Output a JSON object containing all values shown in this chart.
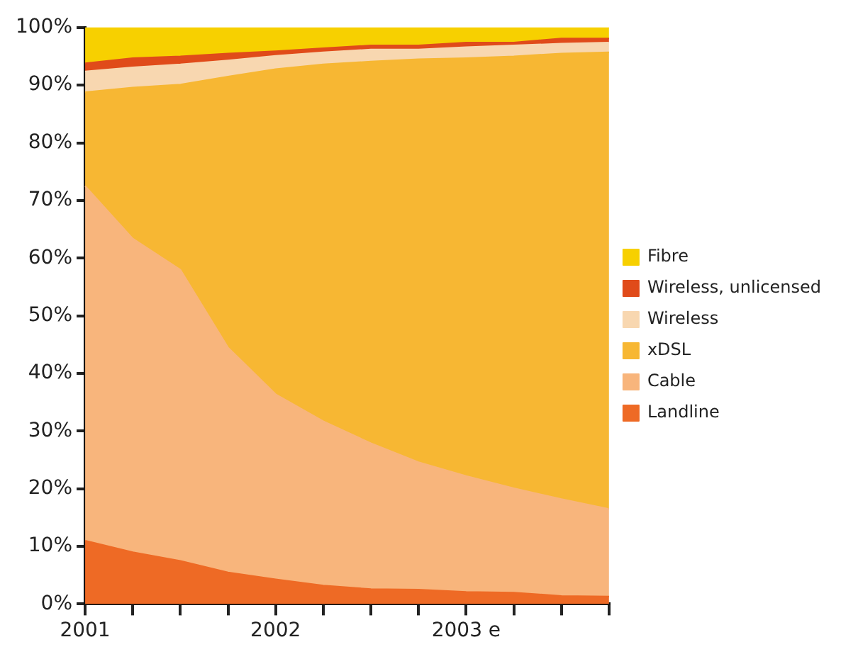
{
  "chart_data": {
    "type": "area",
    "stacked": true,
    "categories": [
      "2001",
      null,
      null,
      null,
      "2002",
      null,
      null,
      null,
      "2003 e",
      null,
      null,
      null
    ],
    "series": [
      {
        "name": "Landline",
        "color": "#ee6a25",
        "values": [
          11,
          9,
          7.5,
          5.5,
          4.3,
          3.2,
          2.6,
          2.5,
          2.1,
          2,
          1.4,
          1.3
        ]
      },
      {
        "name": "Cable",
        "color": "#f8b57c",
        "values": [
          61.5,
          54.4,
          50.5,
          39,
          32.1,
          28.5,
          25.3,
          22.1,
          20.1,
          18.1,
          16.8,
          15.2
        ]
      },
      {
        "name": "xDSL",
        "color": "#f7b733",
        "values": [
          16.3,
          26.2,
          32.1,
          47,
          56.4,
          61.9,
          66.2,
          69.9,
          72.5,
          74.9,
          77.3,
          79.2
        ]
      },
      {
        "name": "Wireless",
        "color": "#f8d7b0",
        "values": [
          3.6,
          3.5,
          3.5,
          2.8,
          2.3,
          2.1,
          2.1,
          1.7,
          1.9,
          1.9,
          1.7,
          1.7
        ]
      },
      {
        "name": "Wireless, unlicensed",
        "color": "#e04b1a",
        "values": [
          1.4,
          1.6,
          1.4,
          1.2,
          0.8,
          0.7,
          0.7,
          0.7,
          0.8,
          0.5,
          0.9,
          0.7
        ]
      },
      {
        "name": "Fibre",
        "color": "#f7d000",
        "values": [
          6.2,
          5.3,
          5,
          4.5,
          4.1,
          3.6,
          3.1,
          3.1,
          2.6,
          2.6,
          1.9,
          1.9
        ]
      }
    ],
    "ylim": [
      0,
      100
    ],
    "yticks": [
      {
        "value": 0,
        "label": "0%"
      },
      {
        "value": 10,
        "label": "10%"
      },
      {
        "value": 20,
        "label": "20%"
      },
      {
        "value": 30,
        "label": "30%"
      },
      {
        "value": 40,
        "label": "40%"
      },
      {
        "value": 50,
        "label": "50%"
      },
      {
        "value": 60,
        "label": "60%"
      },
      {
        "value": 70,
        "label": "70%"
      },
      {
        "value": 80,
        "label": "80%"
      },
      {
        "value": 90,
        "label": "90%"
      },
      {
        "value": 100,
        "label": "100%"
      }
    ],
    "grid": false,
    "legend": "right"
  }
}
